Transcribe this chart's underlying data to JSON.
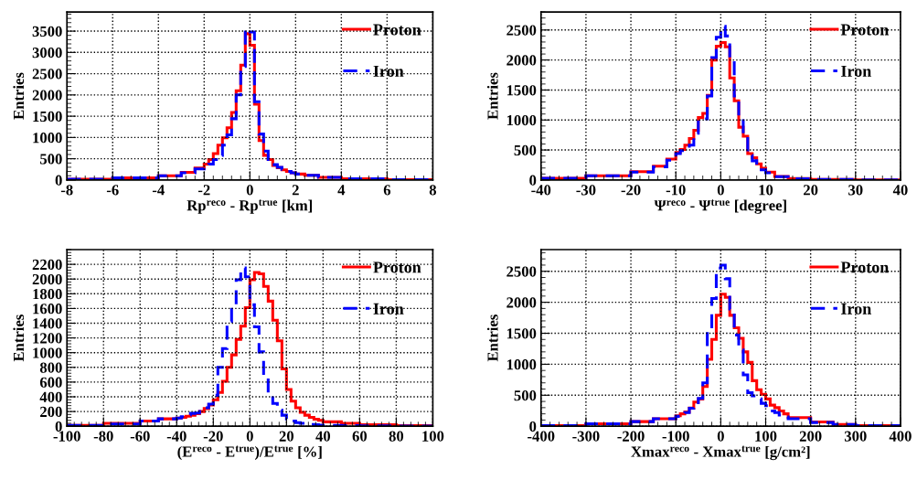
{
  "chart_data": [
    {
      "type": "histogram",
      "xlabel": "Rp$^{reco}$ - Rp$^{true}$ [km]",
      "ylabel": "Entries",
      "xlim": [
        -8,
        8
      ],
      "xticks": [
        -8,
        -6,
        -4,
        -2,
        0,
        2,
        4,
        6,
        8
      ],
      "ylim": [
        0,
        3950
      ],
      "yticks": [
        0,
        500,
        1000,
        1500,
        2000,
        2500,
        3000,
        3500
      ],
      "grid": true,
      "legend": "top right",
      "bins": [
        -8,
        -6,
        -4,
        -3,
        -2.4,
        -2,
        -1.8,
        -1.6,
        -1.4,
        -1.2,
        -1,
        -0.8,
        -0.6,
        -0.4,
        -0.2,
        0,
        0.2,
        0.4,
        0.6,
        0.8,
        1,
        1.2,
        1.4,
        1.6,
        1.8,
        2,
        2.4,
        3,
        4,
        6,
        8
      ],
      "series": [
        {
          "name": "Proton",
          "color": "#ff0000",
          "line_style": "solid",
          "values": [
            20,
            50,
            100,
            180,
            280,
            375,
            480,
            620,
            820,
            990,
            1230,
            1590,
            2100,
            2700,
            3440,
            3170,
            1780,
            925,
            580,
            480,
            340,
            290,
            240,
            200,
            170,
            140,
            110,
            60,
            30,
            10
          ]
        },
        {
          "name": "Iron",
          "color": "#0000ff",
          "line_style": "dashed",
          "values": [
            20,
            50,
            100,
            170,
            260,
            310,
            375,
            480,
            580,
            820,
            1060,
            1440,
            2000,
            2670,
            3550,
            3480,
            1840,
            1080,
            680,
            480,
            360,
            300,
            250,
            200,
            170,
            140,
            110,
            60,
            30,
            10
          ]
        }
      ]
    },
    {
      "type": "histogram",
      "xlabel": "Ψ$^{reco}$ - Ψ$^{true}$ [degree]",
      "ylabel": "Entries",
      "xlim": [
        -40,
        40
      ],
      "xticks": [
        -40,
        -30,
        -20,
        -10,
        0,
        10,
        20,
        30,
        40
      ],
      "ylim": [
        0,
        2800
      ],
      "yticks": [
        0,
        500,
        1000,
        1500,
        2000,
        2500
      ],
      "grid": true,
      "legend": "top right",
      "bins": [
        -40,
        -30,
        -20,
        -15,
        -12,
        -10,
        -9,
        -8,
        -7,
        -6,
        -5,
        -4,
        -3,
        -2,
        -1,
        0,
        1,
        2,
        3,
        4,
        5,
        6,
        7,
        8,
        9,
        10,
        12,
        15,
        20,
        30,
        40
      ],
      "series": [
        {
          "name": "Proton",
          "color": "#ff0000",
          "line_style": "solid",
          "values": [
            30,
            70,
            140,
            230,
            350,
            460,
            510,
            580,
            690,
            830,
            1040,
            1110,
            1410,
            2000,
            2230,
            2290,
            2220,
            1700,
            1320,
            880,
            730,
            440,
            370,
            270,
            195,
            130,
            60,
            25,
            8,
            3
          ]
        },
        {
          "name": "Iron",
          "color": "#0000ff",
          "line_style": "dashed",
          "values": [
            30,
            70,
            130,
            220,
            330,
            440,
            490,
            510,
            580,
            780,
            970,
            1020,
            1400,
            2040,
            2380,
            2560,
            2400,
            2040,
            1400,
            1020,
            730,
            410,
            320,
            240,
            170,
            120,
            55,
            22,
            8,
            3
          ]
        }
      ]
    },
    {
      "type": "histogram",
      "xlabel": "(E$^{reco}$ - E$^{true}$)/E$^{true}$ [%]",
      "ylabel": "Entries",
      "xlim": [
        -100,
        100
      ],
      "xticks": [
        -100,
        -80,
        -60,
        -40,
        -20,
        0,
        20,
        40,
        60,
        80,
        100
      ],
      "ylim": [
        0,
        2400
      ],
      "yticks": [
        0,
        200,
        400,
        600,
        800,
        1000,
        1200,
        1400,
        1600,
        1800,
        2000,
        2200
      ],
      "grid": true,
      "legend": "top right",
      "bins": [
        -100,
        -80,
        -60,
        -50,
        -40,
        -37.5,
        -35,
        -32.5,
        -30,
        -27.5,
        -25,
        -22.5,
        -20,
        -17.5,
        -15,
        -12.5,
        -10,
        -7.5,
        -5,
        -2.5,
        0,
        2.5,
        5,
        7.5,
        10,
        12.5,
        15,
        17.5,
        20,
        22.5,
        25,
        27.5,
        30,
        32.5,
        35,
        37.5,
        40,
        50,
        60,
        80,
        100
      ],
      "series": [
        {
          "name": "Proton",
          "color": "#ff0000",
          "line_style": "solid",
          "values": [
            10,
            40,
            70,
            100,
            110,
            120,
            135,
            150,
            170,
            200,
            240,
            290,
            360,
            460,
            610,
            800,
            970,
            1180,
            1360,
            1610,
            1990,
            2090,
            2070,
            1900,
            1700,
            1440,
            1160,
            780,
            500,
            340,
            250,
            190,
            150,
            120,
            95,
            80,
            60,
            40,
            20,
            8
          ]
        },
        {
          "name": "Iron",
          "color": "#0000ff",
          "line_style": "dashed",
          "values": [
            10,
            30,
            70,
            100,
            110,
            130,
            155,
            175,
            180,
            200,
            250,
            300,
            420,
            800,
            1055,
            1425,
            1610,
            1990,
            2150,
            2030,
            1650,
            1350,
            1010,
            690,
            440,
            310,
            220,
            150,
            100,
            70,
            50,
            40,
            30,
            25,
            20,
            15,
            10,
            8,
            5,
            3
          ]
        }
      ]
    },
    {
      "type": "histogram",
      "xlabel": "Xmax$^{reco}$ - Xmax$^{true}$ [g/cm²]",
      "ylabel": "Entries",
      "xlim": [
        -400,
        400
      ],
      "xticks": [
        -400,
        -300,
        -200,
        -100,
        0,
        100,
        200,
        300,
        400
      ],
      "ylim": [
        0,
        2850
      ],
      "yticks": [
        0,
        500,
        1000,
        1500,
        2000,
        2500
      ],
      "grid": true,
      "legend": "top right",
      "bins": [
        -400,
        -300,
        -200,
        -150,
        -100,
        -90,
        -80,
        -70,
        -60,
        -50,
        -40,
        -30,
        -20,
        -10,
        0,
        10,
        20,
        30,
        40,
        50,
        60,
        70,
        80,
        90,
        100,
        110,
        120,
        130,
        140,
        150,
        200,
        250,
        300,
        400
      ],
      "series": [
        {
          "name": "Proton",
          "color": "#ff0000",
          "line_style": "solid",
          "values": [
            10,
            40,
            75,
            120,
            170,
            200,
            230,
            295,
            390,
            440,
            640,
            1080,
            1400,
            1790,
            2130,
            2080,
            1790,
            1590,
            1420,
            1200,
            1030,
            735,
            590,
            515,
            440,
            340,
            300,
            245,
            200,
            140,
            70,
            30,
            10
          ]
        },
        {
          "name": "Iron",
          "color": "#0000ff",
          "line_style": "dashed",
          "values": [
            10,
            40,
            75,
            120,
            160,
            190,
            220,
            290,
            380,
            450,
            700,
            1570,
            2060,
            2550,
            2600,
            2380,
            1890,
            1470,
            1230,
            830,
            540,
            490,
            440,
            370,
            330,
            245,
            220,
            180,
            150,
            120,
            60,
            30,
            10
          ]
        }
      ]
    }
  ]
}
